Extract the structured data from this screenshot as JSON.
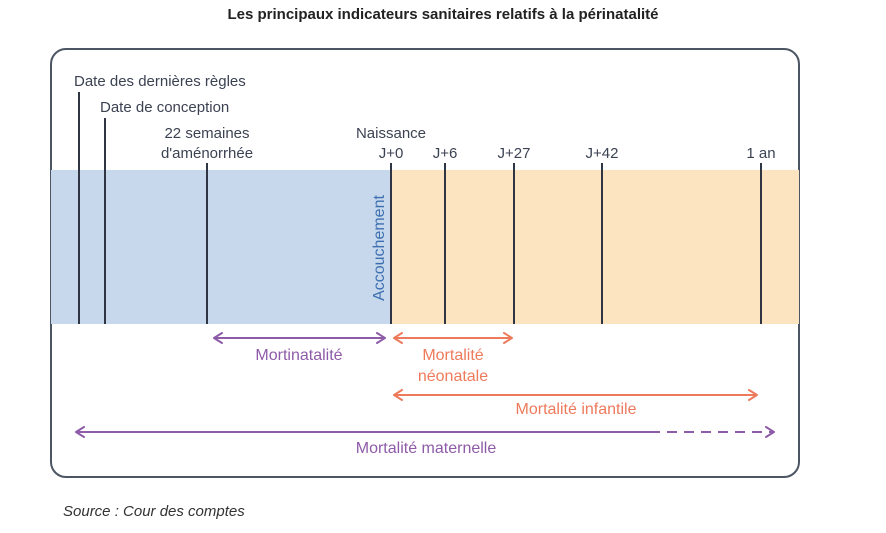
{
  "title": "Les principaux indicateurs sanitaires relatifs à la périnatalité",
  "source": "Source : Cour des comptes",
  "colors": {
    "pregnancy_band": "#c7d8ec",
    "postnatal_band": "#fde4c0",
    "marker_line": "#2f3542",
    "label_text": "#3b4252",
    "delivery_text": "#3d6fb0",
    "purple": "#8e5ba8",
    "orange": "#ee7a5c"
  },
  "milestones": {
    "last_period": "Date des dernières règles",
    "conception": "Date de conception",
    "weeks_22_line1": "22 semaines",
    "weeks_22_line2": "d'aménorrhée",
    "birth": "Naissance",
    "j0": "J+0",
    "j6": "J+6",
    "j27": "J+27",
    "j42": "J+42",
    "one_year": "1 an"
  },
  "delivery_label": "Accouchement",
  "indicators": {
    "mortinatalite": "Mortinatalité",
    "neonatale_line1": "Mortalité",
    "neonatale_line2": "néonatale",
    "infantile": "Mortalité infantile",
    "maternelle": "Mortalité maternelle"
  }
}
